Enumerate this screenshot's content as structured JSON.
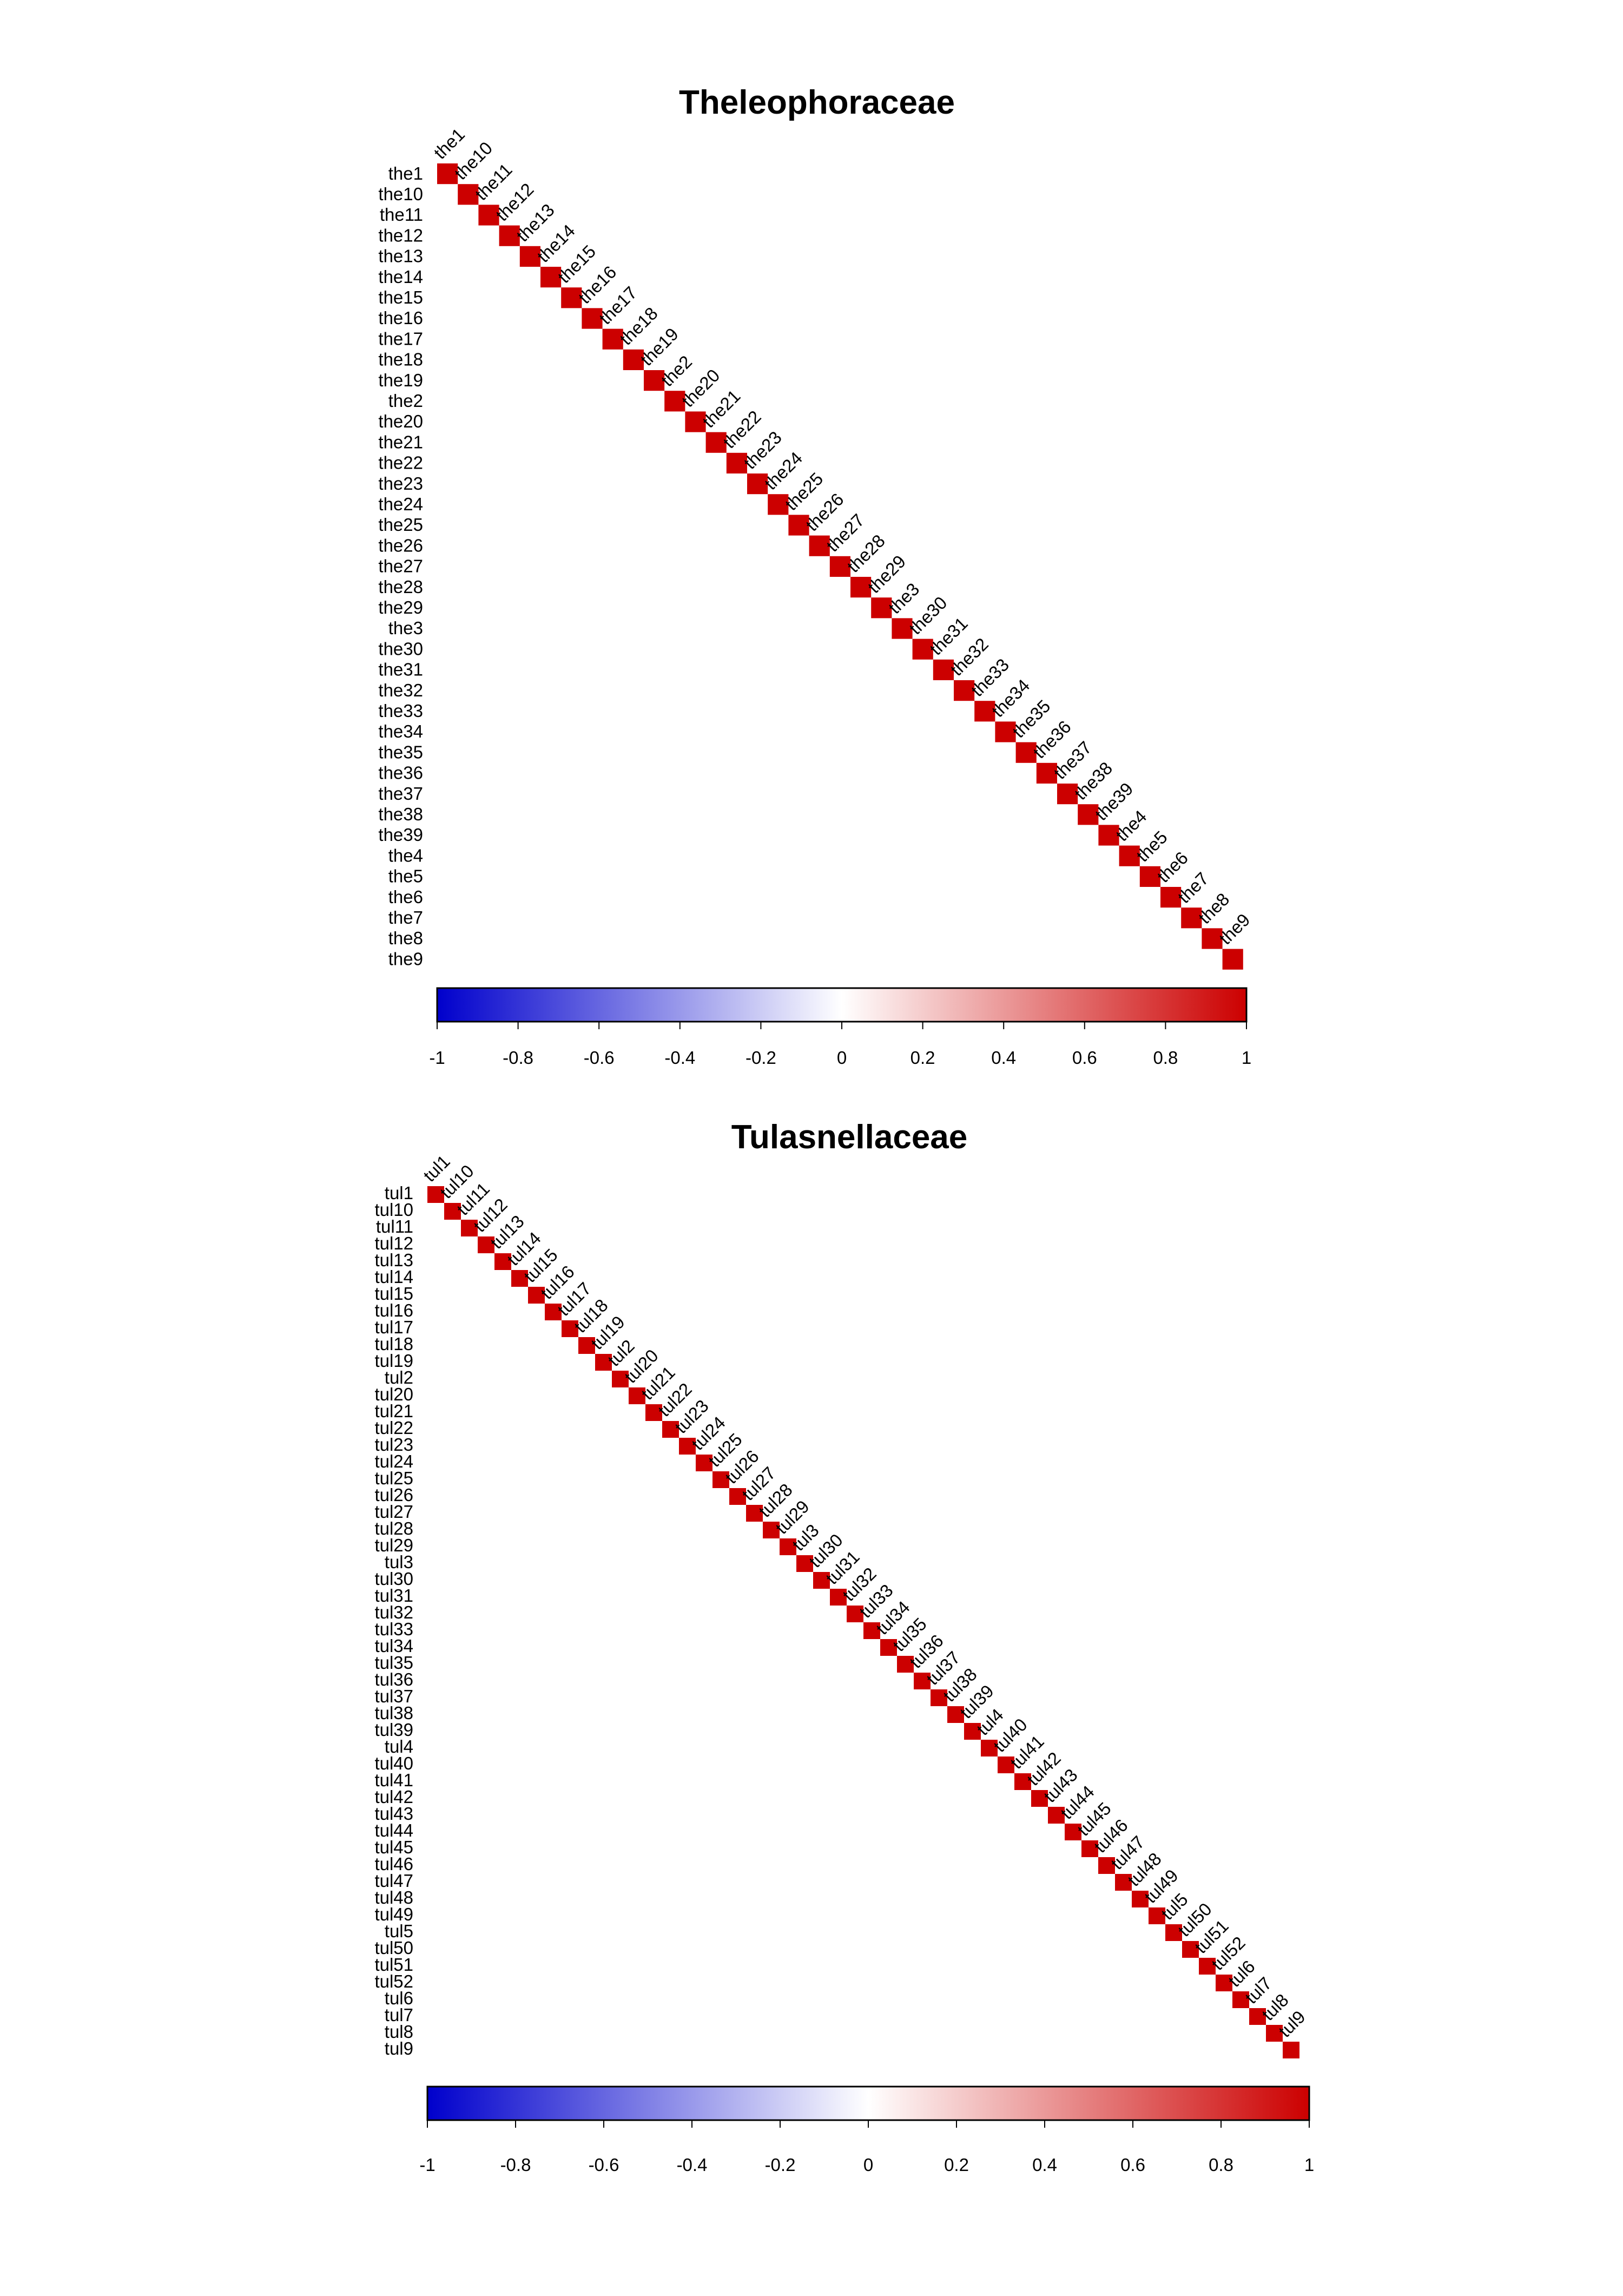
{
  "chart_data": [
    {
      "type": "heatmap",
      "subtype": "correlation-matrix-upper-triangle",
      "title": "Theleophoraceae",
      "labels": [
        "the1",
        "the10",
        "the11",
        "the12",
        "the13",
        "the14",
        "the15",
        "the16",
        "the17",
        "the18",
        "the19",
        "the2",
        "the20",
        "the21",
        "the22",
        "the23",
        "the24",
        "the25",
        "the26",
        "the27",
        "the28",
        "the29",
        "the3",
        "the30",
        "the31",
        "the32",
        "the33",
        "the34",
        "the35",
        "the36",
        "the37",
        "the38",
        "the39",
        "the4",
        "the5",
        "the6",
        "the7",
        "the8",
        "the9"
      ],
      "values_note_diagonal": 1,
      "off_diagonal_value": 0,
      "colorbar": {
        "ticks": [
          "-1",
          "-0.8",
          "-0.6",
          "-0.4",
          "-0.2",
          "0",
          "0.2",
          "0.4",
          "0.6",
          "0.8",
          "1"
        ],
        "range": [
          -1,
          1
        ],
        "colors": [
          "#0000CC",
          "#FFFFFF",
          "#CC0000"
        ]
      },
      "diagonal_color": "#CC0000"
    },
    {
      "type": "heatmap",
      "subtype": "correlation-matrix-upper-triangle",
      "title": "Tulasnellaceae",
      "labels": [
        "tul1",
        "tul10",
        "tul11",
        "tul12",
        "tul13",
        "tul14",
        "tul15",
        "tul16",
        "tul17",
        "tul18",
        "tul19",
        "tul2",
        "tul20",
        "tul21",
        "tul22",
        "tul23",
        "tul24",
        "tul25",
        "tul26",
        "tul27",
        "tul28",
        "tul29",
        "tul3",
        "tul30",
        "tul31",
        "tul32",
        "tul33",
        "tul34",
        "tul35",
        "tul36",
        "tul37",
        "tul38",
        "tul39",
        "tul4",
        "tul40",
        "tul41",
        "tul42",
        "tul43",
        "tul44",
        "tul45",
        "tul46",
        "tul47",
        "tul48",
        "tul49",
        "tul5",
        "tul50",
        "tul51",
        "tul52",
        "tul6",
        "tul7",
        "tul8",
        "tul9"
      ],
      "values_note_diagonal": 1,
      "off_diagonal_value": 0,
      "colorbar": {
        "ticks": [
          "-1",
          "-0.8",
          "-0.6",
          "-0.4",
          "-0.2",
          "0",
          "0.2",
          "0.4",
          "0.6",
          "0.8",
          "1"
        ],
        "range": [
          -1,
          1
        ],
        "colors": [
          "#0000CC",
          "#FFFFFF",
          "#CC0000"
        ]
      },
      "diagonal_color": "#CC0000"
    }
  ]
}
